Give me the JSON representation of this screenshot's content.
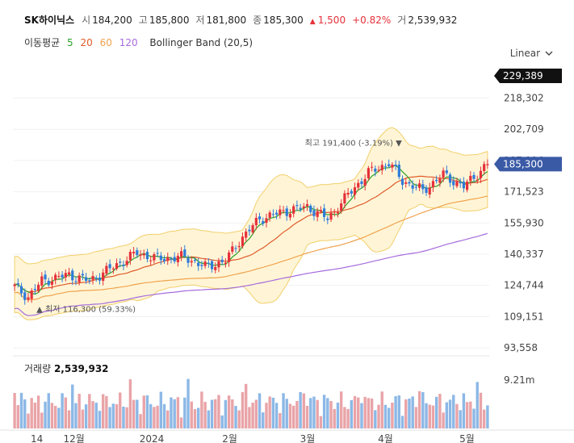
{
  "header": {
    "stock_name": "SK하이닉스",
    "open_label": "시",
    "open": "184,200",
    "high_label": "고",
    "high": "185,800",
    "low_label": "저",
    "low": "181,800",
    "close_label": "종",
    "close": "185,300",
    "change_arrow": "▲",
    "change": "1,500",
    "change_pct": "+0.82%",
    "volume_label": "거",
    "volume": "2,539,932"
  },
  "indicators": {
    "ma_label": "이동평균",
    "ma5": "5",
    "ma20": "20",
    "ma60": "60",
    "ma120": "120",
    "bb_label": "Bollinger Band (20,5)"
  },
  "scale": {
    "label": "Linear",
    "icon": "chevron-down-icon"
  },
  "colors": {
    "up": "#e5313a",
    "down": "#2f7bd9",
    "ma5": "#2ca02c",
    "ma20": "#e05a2b",
    "ma60": "#f0a24e",
    "ma120": "#a66bdc",
    "band_fill": "#fff5d6",
    "band_line": "#f2cf6b",
    "vol_up": "#e9a4a8",
    "vol_down": "#8cb8e6",
    "highlight": "#111111",
    "price_tag": "#3a5aa6"
  },
  "price_tags": {
    "top": "229,389",
    "current": "185,300"
  },
  "annotations": {
    "high_text": "최고 191,400 (-3.19%)",
    "high_marker": "▼",
    "low_text": "최저 116,300 (59.33%)",
    "low_marker": "▲"
  },
  "volume_panel": {
    "label": "거래량",
    "value": "2,539,932",
    "axis_label": "9.21m"
  },
  "chart_data": {
    "type": "candlestick",
    "y_ticks": [
      "218,302",
      "202,709",
      "187,116",
      "171,523",
      "155,930",
      "140,337",
      "124,744",
      "109,151",
      "93,558"
    ],
    "y_tick_values": [
      218302,
      202709,
      187116,
      171523,
      155930,
      140337,
      124744,
      109151,
      93558
    ],
    "ylim": [
      90000,
      233000
    ],
    "x_labels": [
      "14",
      "12월",
      "2024",
      "2월",
      "3월",
      "4월",
      "5월"
    ],
    "x_label_positions": [
      6,
      16,
      37,
      58,
      79,
      100,
      122
    ],
    "series": [
      {
        "name": "5",
        "role": "ma5"
      },
      {
        "name": "20",
        "role": "ma20"
      },
      {
        "name": "60",
        "role": "ma60"
      },
      {
        "name": "120",
        "role": "ma120"
      }
    ],
    "candles_count": 140,
    "last_close": 185300,
    "period_high": 191400,
    "period_low": 116300,
    "volume_max": "9.21m",
    "last_volume": 2539932
  }
}
